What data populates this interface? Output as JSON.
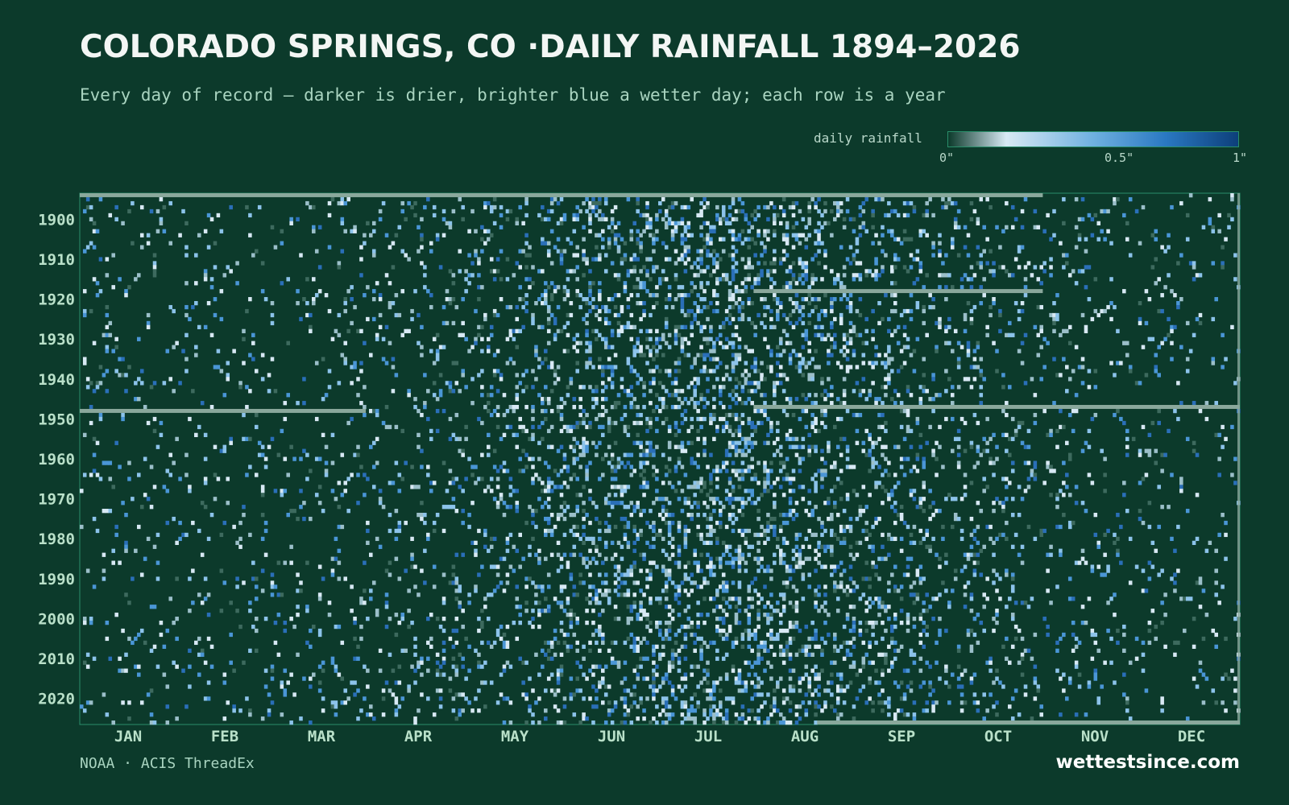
{
  "header": {
    "title": "COLORADO SPRINGS, CO ·DAILY RAINFALL 1894–2026",
    "subtitle": "Every day of record — darker is drier, brighter blue a wetter day; each row is a year"
  },
  "legend": {
    "label": "daily rainfall",
    "ticks": [
      "0\"",
      "0.5\"",
      "1\""
    ]
  },
  "footer": {
    "source": "NOAA · ACIS ThreadEx",
    "brand": "wettestsince.com"
  },
  "colors": {
    "background": "#0c3a2b",
    "missing": "#8aa89c",
    "scale": [
      "#0c3a2b",
      "#d8e9f4",
      "#6fb0e0",
      "#2a78c2",
      "#0d3f7a"
    ]
  },
  "chart_data": {
    "type": "heatmap",
    "title": "COLORADO SPRINGS, CO ·DAILY RAINFALL 1894–2026",
    "x_categories": [
      "JAN",
      "FEB",
      "MAR",
      "APR",
      "MAY",
      "JUN",
      "JUL",
      "AUG",
      "SEP",
      "OCT",
      "NOV",
      "DEC"
    ],
    "y_range": [
      1894,
      2026
    ],
    "y_ticks": [
      "1900",
      "1910",
      "1920",
      "1930",
      "1940",
      "1950",
      "1960",
      "1970",
      "1980",
      "1990",
      "2000",
      "2010",
      "2020"
    ],
    "value_range": [
      0,
      1
    ],
    "value_unit": "inches",
    "missing_data": [
      {
        "year": 1894,
        "from_day": 1,
        "to_day": 303
      },
      {
        "year": 1918,
        "from_day": 213,
        "to_day": 303
      },
      {
        "year": 1948,
        "from_day": 1,
        "to_day": 90
      },
      {
        "year": 1947,
        "from_day": 213,
        "to_day": 365
      },
      {
        "year": 2026,
        "from_day": 233,
        "to_day": 365
      }
    ],
    "legend_position": "top-right",
    "grid": false
  }
}
